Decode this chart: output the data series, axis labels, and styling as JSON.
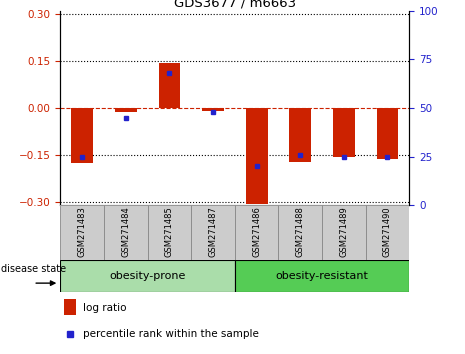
{
  "title": "GDS3677 / m6663",
  "samples": [
    "GSM271483",
    "GSM271484",
    "GSM271485",
    "GSM271487",
    "GSM271486",
    "GSM271488",
    "GSM271489",
    "GSM271490"
  ],
  "log_ratios": [
    -0.175,
    -0.012,
    0.143,
    -0.01,
    -0.305,
    -0.172,
    -0.155,
    -0.162
  ],
  "percentile_ranks": [
    25,
    45,
    68,
    48,
    20,
    26,
    25,
    25
  ],
  "groups": [
    "obesity-prone",
    "obesity-prone",
    "obesity-prone",
    "obesity-prone",
    "obesity-resistant",
    "obesity-resistant",
    "obesity-resistant",
    "obesity-resistant"
  ],
  "group_colors": {
    "obesity-prone": "#aaddaa",
    "obesity-resistant": "#55cc55"
  },
  "bar_color": "#cc2200",
  "dot_color": "#2222cc",
  "ylim": [
    -0.31,
    0.31
  ],
  "yticks_left": [
    -0.3,
    -0.15,
    0.0,
    0.15,
    0.3
  ],
  "yticks_right": [
    0,
    25,
    50,
    75,
    100
  ],
  "right_ylim": [
    0,
    100
  ],
  "hline_color": "#cc2200",
  "grid_color": "black",
  "disease_state_label": "disease state",
  "legend_log_ratio": "log ratio",
  "legend_percentile": "percentile rank within the sample",
  "sample_box_color": "#cccccc",
  "sample_box_edge": "#888888"
}
